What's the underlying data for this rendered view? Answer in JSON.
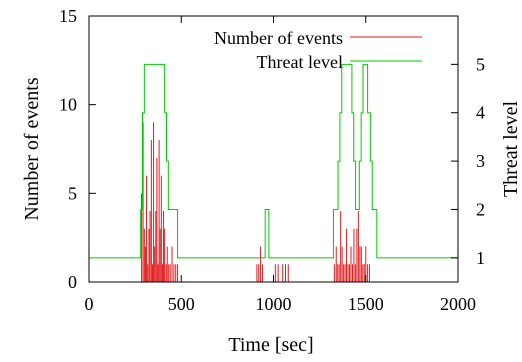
{
  "chart_data": {
    "type": "bar+step",
    "x": {
      "label": "Time [sec]",
      "range": [
        0,
        2000
      ],
      "ticks": [
        0,
        500,
        1000,
        1500,
        2000
      ]
    },
    "y_left": {
      "label": "Number of events",
      "range": [
        0,
        15
      ],
      "ticks": [
        0,
        5,
        10,
        15
      ]
    },
    "y_right": {
      "label": "Threat level",
      "range": [
        0.5,
        6
      ],
      "ticks": [
        1,
        2,
        3,
        4,
        5
      ]
    },
    "grid": false,
    "legend": "top-right",
    "series": [
      {
        "name": "Number of events",
        "kind": "bar",
        "axis": "left",
        "color": "#e41a1c",
        "points": [
          [
            285,
            5
          ],
          [
            293,
            9
          ],
          [
            300,
            3
          ],
          [
            306,
            2
          ],
          [
            312,
            6
          ],
          [
            318,
            1
          ],
          [
            325,
            3
          ],
          [
            331,
            4
          ],
          [
            338,
            8
          ],
          [
            344,
            1
          ],
          [
            350,
            9
          ],
          [
            356,
            2
          ],
          [
            362,
            4
          ],
          [
            368,
            7
          ],
          [
            374,
            1
          ],
          [
            380,
            8
          ],
          [
            386,
            3
          ],
          [
            392,
            6
          ],
          [
            398,
            1
          ],
          [
            404,
            4
          ],
          [
            410,
            3
          ],
          [
            418,
            1
          ],
          [
            424,
            2
          ],
          [
            432,
            1
          ],
          [
            440,
            1
          ],
          [
            450,
            2
          ],
          [
            460,
            1
          ],
          [
            470,
            1
          ],
          [
            480,
            1
          ],
          [
            910,
            1
          ],
          [
            920,
            1
          ],
          [
            930,
            2
          ],
          [
            940,
            1
          ],
          [
            1010,
            1
          ],
          [
            1025,
            1
          ],
          [
            1050,
            1
          ],
          [
            1065,
            1
          ],
          [
            1080,
            1
          ],
          [
            1330,
            1
          ],
          [
            1340,
            2
          ],
          [
            1348,
            1
          ],
          [
            1356,
            1
          ],
          [
            1364,
            4
          ],
          [
            1372,
            2
          ],
          [
            1380,
            1
          ],
          [
            1388,
            1
          ],
          [
            1396,
            3
          ],
          [
            1404,
            1
          ],
          [
            1412,
            1
          ],
          [
            1420,
            2
          ],
          [
            1428,
            1
          ],
          [
            1436,
            3
          ],
          [
            1444,
            1
          ],
          [
            1452,
            3
          ],
          [
            1460,
            4
          ],
          [
            1468,
            2
          ],
          [
            1476,
            2
          ],
          [
            1484,
            1
          ],
          [
            1492,
            1
          ],
          [
            1500,
            2
          ],
          [
            1510,
            1
          ],
          [
            1520,
            1
          ]
        ]
      },
      {
        "name": "Threat level",
        "kind": "step",
        "axis": "right",
        "color": "#00cc00",
        "points": [
          [
            0,
            1
          ],
          [
            280,
            1
          ],
          [
            280,
            2
          ],
          [
            290,
            2
          ],
          [
            290,
            4
          ],
          [
            300,
            4
          ],
          [
            300,
            5
          ],
          [
            410,
            5
          ],
          [
            410,
            4
          ],
          [
            420,
            4
          ],
          [
            420,
            3
          ],
          [
            430,
            3
          ],
          [
            430,
            2
          ],
          [
            480,
            2
          ],
          [
            480,
            1
          ],
          [
            955,
            1
          ],
          [
            955,
            2
          ],
          [
            975,
            2
          ],
          [
            975,
            1
          ],
          [
            1325,
            1
          ],
          [
            1325,
            2
          ],
          [
            1350,
            2
          ],
          [
            1350,
            3
          ],
          [
            1360,
            3
          ],
          [
            1360,
            4
          ],
          [
            1370,
            4
          ],
          [
            1370,
            5
          ],
          [
            1425,
            5
          ],
          [
            1425,
            4
          ],
          [
            1435,
            4
          ],
          [
            1435,
            3
          ],
          [
            1445,
            3
          ],
          [
            1445,
            2
          ],
          [
            1465,
            2
          ],
          [
            1465,
            3
          ],
          [
            1475,
            3
          ],
          [
            1475,
            4
          ],
          [
            1485,
            4
          ],
          [
            1485,
            5
          ],
          [
            1510,
            5
          ],
          [
            1510,
            4
          ],
          [
            1525,
            4
          ],
          [
            1525,
            3
          ],
          [
            1535,
            3
          ],
          [
            1535,
            2
          ],
          [
            1560,
            2
          ],
          [
            1560,
            1
          ],
          [
            2000,
            1
          ]
        ]
      }
    ]
  }
}
